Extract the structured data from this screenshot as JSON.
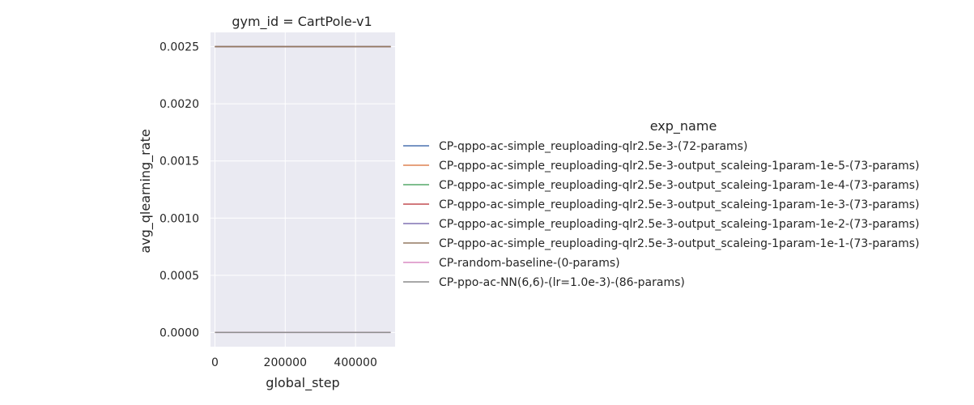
{
  "chart_data": {
    "type": "line",
    "title": "gym_id = CartPole-v1",
    "xlabel": "global_step",
    "ylabel": "avg_qlearning_rate",
    "xlim": [
      -12500,
      512500
    ],
    "ylim": [
      -0.000125,
      0.002625
    ],
    "xticks": [
      0,
      200000,
      400000
    ],
    "xtick_labels": [
      "0",
      "200000",
      "400000"
    ],
    "yticks": [
      0.0,
      0.0005,
      0.001,
      0.0015,
      0.002,
      0.0025
    ],
    "ytick_labels": [
      "0.0000",
      "0.0005",
      "0.0010",
      "0.0015",
      "0.0020",
      "0.0025"
    ],
    "grid": true,
    "legend_title": "exp_name",
    "legend_position": "right (outside plot)",
    "series": [
      {
        "name": "CP-qppo-ac-simple_reuploading-qlr2.5e-3-(72-params)",
        "color": "#4c72b0",
        "x": [
          0,
          500000
        ],
        "y": [
          0.0025,
          0.0025
        ]
      },
      {
        "name": "CP-qppo-ac-simple_reuploading-qlr2.5e-3-output_scaleing-1param-1e-5-(73-params)",
        "color": "#dd8452",
        "x": [
          0,
          500000
        ],
        "y": [
          0.0025,
          0.0025
        ]
      },
      {
        "name": "CP-qppo-ac-simple_reuploading-qlr2.5e-3-output_scaleing-1param-1e-4-(73-params)",
        "color": "#55a868",
        "x": [
          0,
          500000
        ],
        "y": [
          0.0025,
          0.0025
        ]
      },
      {
        "name": "CP-qppo-ac-simple_reuploading-qlr2.5e-3-output_scaleing-1param-1e-3-(73-params)",
        "color": "#c44e52",
        "x": [
          0,
          500000
        ],
        "y": [
          0.0025,
          0.0025
        ]
      },
      {
        "name": "CP-qppo-ac-simple_reuploading-qlr2.5e-3-output_scaleing-1param-1e-2-(73-params)",
        "color": "#8172b3",
        "x": [
          0,
          500000
        ],
        "y": [
          0.0025,
          0.0025
        ]
      },
      {
        "name": "CP-qppo-ac-simple_reuploading-qlr2.5e-3-output_scaleing-1param-1e-1-(73-params)",
        "color": "#937860",
        "x": [
          0,
          500000
        ],
        "y": [
          0.0025,
          0.0025
        ]
      },
      {
        "name": "CP-random-baseline-(0-params)",
        "color": "#da8bc3",
        "x": [
          0,
          500000
        ],
        "y": [
          0.0,
          0.0
        ]
      },
      {
        "name": "CP-ppo-ac-NN(6,6)-(lr=1.0e-3)-(86-params)",
        "color": "#8c8c8c",
        "x": [
          0,
          500000
        ],
        "y": [
          0.0,
          0.0
        ]
      }
    ]
  },
  "colors": {
    "plot_background": "#eaeaf2",
    "grid": "#ffffff",
    "text": "#262626"
  }
}
